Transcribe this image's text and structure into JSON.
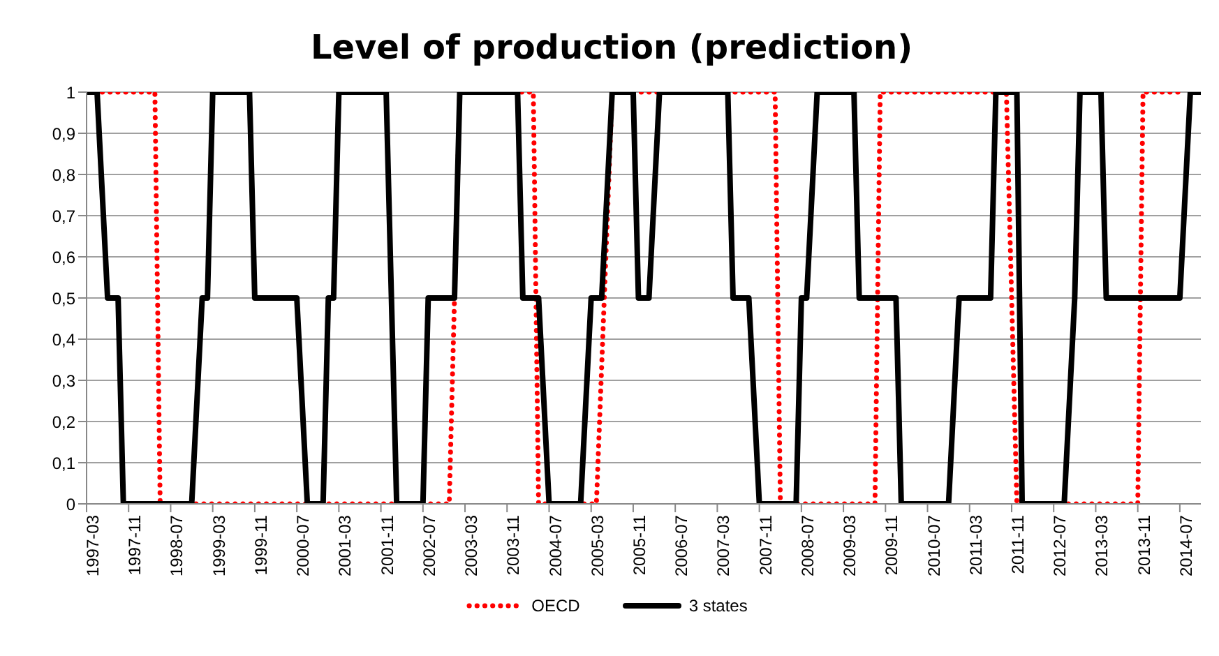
{
  "chart_data": {
    "type": "line",
    "title": "Level of production (prediction)",
    "xlim": [
      "1997-03",
      "2014-11"
    ],
    "xticks": [
      "1997-03",
      "1997-11",
      "1998-07",
      "1999-03",
      "1999-11",
      "2000-07",
      "2001-03",
      "2001-11",
      "2002-07",
      "2003-03",
      "2003-11",
      "2004-07",
      "2005-03",
      "2005-11",
      "2006-07",
      "2007-03",
      "2007-11",
      "2008-07",
      "2009-03",
      "2009-11",
      "2010-07",
      "2011-03",
      "2011-11",
      "2012-07",
      "2013-03",
      "2013-11",
      "2014-07"
    ],
    "ylim": [
      0,
      1
    ],
    "yticks": [
      0,
      {
        "value": 0.1,
        "label": "0,1"
      },
      {
        "value": 0.2,
        "label": "0,2"
      },
      {
        "value": 0.3,
        "label": "0,3"
      },
      {
        "value": 0.4,
        "label": "0,4"
      },
      {
        "value": 0.5,
        "label": "0,5"
      },
      {
        "value": 0.6,
        "label": "0,6"
      },
      {
        "value": 0.7,
        "label": "0,7"
      },
      {
        "value": 0.8,
        "label": "0,8"
      },
      {
        "value": 0.9,
        "label": "0,9"
      },
      1
    ],
    "grid": "y",
    "legend": "bottom",
    "marker": "none",
    "series": [
      {
        "name": "OECD",
        "color": "#ff0000",
        "line_style": "dotted",
        "x": [
          "1997-03",
          "1998-04",
          "1998-05",
          "2002-12",
          "2003-02",
          "2004-04",
          "2004-05",
          "2005-04",
          "2005-07",
          "2008-02",
          "2008-03",
          "2009-09",
          "2009-10",
          "2011-10",
          "2011-12",
          "2013-11",
          "2013-12",
          "2014-07"
        ],
        "values": [
          1,
          1,
          0,
          0,
          1,
          1,
          0,
          0,
          1,
          1,
          0,
          0,
          1,
          1,
          0,
          0,
          1,
          1
        ]
      },
      {
        "name": "3 states",
        "color": "#000000",
        "line_style": "solid",
        "x": [
          "1997-03",
          "1997-05",
          "1997-07",
          "1997-09",
          "1997-10",
          "1998-11",
          "1999-01",
          "1999-02",
          "1999-03",
          "1999-10",
          "1999-11",
          "2000-07",
          "2000-09",
          "2000-12",
          "2001-01",
          "2001-02",
          "2001-03",
          "2001-12",
          "2002-01",
          "2002-02",
          "2002-07",
          "2002-08",
          "2003-01",
          "2003-02",
          "2004-01",
          "2004-02",
          "2004-05",
          "2004-07",
          "2005-01",
          "2005-03",
          "2005-05",
          "2005-07",
          "2005-11",
          "2005-12",
          "2006-02",
          "2006-04",
          "2007-05",
          "2007-06",
          "2007-09",
          "2007-11",
          "2008-06",
          "2008-07",
          "2008-08",
          "2008-10",
          "2009-05",
          "2009-06",
          "2010-01",
          "2010-02",
          "2010-11",
          "2011-01",
          "2011-07",
          "2011-08",
          "2011-12",
          "2012-01",
          "2012-09",
          "2012-11",
          "2012-12",
          "2013-04",
          "2013-05",
          "2014-07",
          "2014-09",
          "2014-11"
        ],
        "values": [
          1,
          1,
          0.5,
          0.5,
          0,
          0,
          0.5,
          0.5,
          1,
          1,
          0.5,
          0.5,
          0,
          0,
          0.5,
          0.5,
          1,
          1,
          0.5,
          0,
          0,
          0.5,
          0.5,
          1,
          1,
          0.5,
          0.5,
          0,
          0,
          0.5,
          0.5,
          1,
          1,
          0.5,
          0.5,
          1,
          1,
          0.5,
          0.5,
          0,
          0,
          0.5,
          0.5,
          1,
          1,
          0.5,
          0.5,
          0,
          0,
          0.5,
          0.5,
          1,
          1,
          0,
          0,
          0.5,
          1,
          1,
          0.5,
          0.5,
          1,
          1
        ]
      }
    ]
  }
}
